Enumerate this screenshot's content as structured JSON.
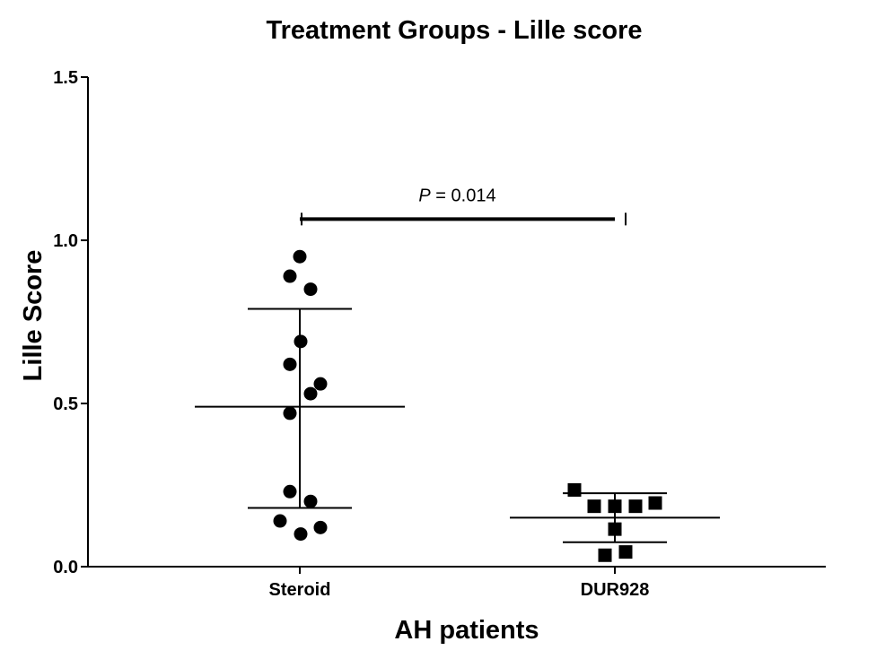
{
  "chart_data": {
    "type": "scatter",
    "title": "Treatment Groups - Lille score",
    "xlabel": "AH patients",
    "ylabel": "Lille Score",
    "ylim": [
      0,
      1.5
    ],
    "yticks": [
      0.0,
      0.5,
      1.0,
      1.5
    ],
    "ytick_labels": [
      "0.0",
      "0.5",
      "1.0",
      "1.5"
    ],
    "categories": [
      "Steroid",
      "DUR928"
    ],
    "grid": false,
    "legend": "none",
    "series": [
      {
        "category": "Steroid",
        "marker": "circle",
        "color": "#000000",
        "points": [
          {
            "offset": 0.0,
            "y": 0.95
          },
          {
            "offset": -0.11,
            "y": 0.89
          },
          {
            "offset": 0.12,
            "y": 0.85
          },
          {
            "offset": 0.01,
            "y": 0.69
          },
          {
            "offset": -0.11,
            "y": 0.62
          },
          {
            "offset": 0.23,
            "y": 0.56
          },
          {
            "offset": 0.12,
            "y": 0.53
          },
          {
            "offset": -0.11,
            "y": 0.47
          },
          {
            "offset": -0.11,
            "y": 0.23
          },
          {
            "offset": 0.12,
            "y": 0.2
          },
          {
            "offset": -0.22,
            "y": 0.14
          },
          {
            "offset": 0.23,
            "y": 0.12
          },
          {
            "offset": 0.01,
            "y": 0.1
          }
        ],
        "mean": 0.49,
        "sd_upper": 0.79,
        "sd_lower": 0.18
      },
      {
        "category": "DUR928",
        "marker": "square",
        "color": "#000000",
        "points": [
          {
            "offset": -0.45,
            "y": 0.235
          },
          {
            "offset": -0.23,
            "y": 0.185
          },
          {
            "offset": 0.0,
            "y": 0.185
          },
          {
            "offset": 0.23,
            "y": 0.185
          },
          {
            "offset": 0.45,
            "y": 0.195
          },
          {
            "offset": 0.0,
            "y": 0.115
          },
          {
            "offset": 0.12,
            "y": 0.045
          },
          {
            "offset": -0.11,
            "y": 0.035
          }
        ],
        "mean": 0.15,
        "sd_upper": 0.225,
        "sd_lower": 0.075
      }
    ],
    "annotation": {
      "p_italic": "P",
      "p_rest": " = 0.014",
      "y": 1.065
    }
  }
}
